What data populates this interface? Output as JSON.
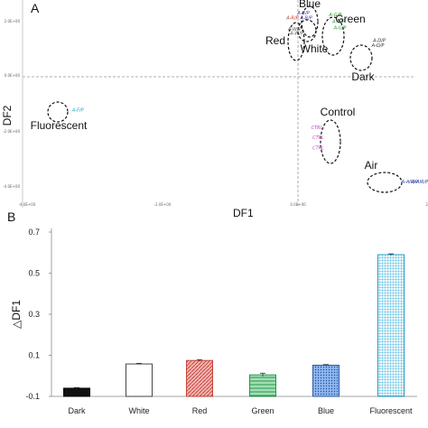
{
  "chart_data": [
    {
      "type": "scatter",
      "panel": "A",
      "xlabel": "DF1",
      "ylabel": "DF2",
      "xlim": [
        -4,
        2.5
      ],
      "ylim": [
        -2.5,
        1.5
      ],
      "grid": false,
      "tick_labels_x": [
        "-4.0E+00",
        "-2.0E+00",
        "0.0E+00",
        "2.0E+00"
      ],
      "tick_labels_y": [
        "2.0E+00",
        "0.0E+00",
        "-2.0E+00",
        "-4.0E+00"
      ],
      "groups": [
        {
          "name": "Blue",
          "color": "#3a3ab0",
          "points": [
            {
              "x": 0.08,
              "y": 1.22,
              "label": "A-B/P"
            },
            {
              "x": 0.12,
              "y": 1.12,
              "label": "A-B/P"
            }
          ]
        },
        {
          "name": "Green",
          "color": "#2e9a3e",
          "points": [
            {
              "x": 0.55,
              "y": 1.18,
              "label": "A-G/P"
            },
            {
              "x": 0.6,
              "y": 1.05,
              "label": "A-G/P"
            },
            {
              "x": 0.62,
              "y": 0.93,
              "label": "A-G/P"
            }
          ]
        },
        {
          "name": "Red",
          "color": "#c0392b",
          "points": [
            {
              "x": -0.08,
              "y": 1.12,
              "label": "A-R/P"
            }
          ]
        },
        {
          "name": "White",
          "color": "#555555",
          "points": [
            {
              "x": -0.05,
              "y": 0.9,
              "label": "A-W/P"
            },
            {
              "x": -0.02,
              "y": 0.82,
              "label": "A-W/P"
            }
          ]
        },
        {
          "name": "Dark",
          "color": "#333333",
          "points": [
            {
              "x": 1.2,
              "y": 0.68,
              "label": "A-D/P"
            },
            {
              "x": 1.18,
              "y": 0.58,
              "label": "A-D/P"
            }
          ]
        },
        {
          "name": "Fluorescent",
          "color": "#1aa6c9",
          "points": [
            {
              "x": -3.25,
              "y": -0.68,
              "label": "A-F/P"
            }
          ]
        },
        {
          "name": "Control",
          "color": "#c03fb5",
          "points": [
            {
              "x": 0.28,
              "y": -1.02,
              "label": "CTRL"
            },
            {
              "x": 0.3,
              "y": -1.22,
              "label": "CTRL"
            },
            {
              "x": 0.3,
              "y": -1.42,
              "label": "CTRL"
            }
          ]
        },
        {
          "name": "Air",
          "color": "#2b3fa0",
          "points": [
            {
              "x": 1.65,
              "y": -2.08,
              "label": "A-AIR/P"
            },
            {
              "x": 1.8,
              "y": -2.08,
              "label": "A-AIR/P"
            }
          ]
        }
      ]
    },
    {
      "type": "bar",
      "panel": "B",
      "ylabel": "△DF1",
      "ylim": [
        -0.1,
        0.7
      ],
      "yticks": [
        "0.7",
        "0.5",
        "0.3",
        "0.1",
        "-0.1"
      ],
      "categories": [
        "Dark",
        "White",
        "Red",
        "Green",
        "Blue",
        "Fluorescent"
      ],
      "values": [
        -0.06,
        0.058,
        0.075,
        0.005,
        0.052,
        0.59
      ],
      "errors": [
        0.003,
        0.003,
        0.004,
        0.008,
        0.003,
        0.004
      ],
      "fills": [
        "#111111",
        "#ffffff",
        "#e06666",
        "#4dbf6e",
        "#4a86d8",
        "#45b9e0"
      ],
      "borders": [
        "#000000",
        "#333333",
        "#c0392b",
        "#1f8a3f",
        "#1f4fa0",
        "#1b8fc0"
      ]
    }
  ]
}
